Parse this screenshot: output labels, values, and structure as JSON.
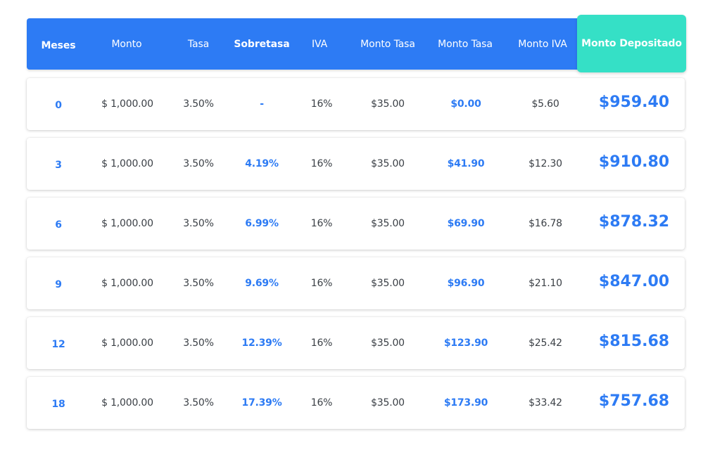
{
  "header": {
    "meses": "Meses",
    "monto": "Monto",
    "tasa": "Tasa",
    "sobretasa": "Sobretasa",
    "iva": "IVA",
    "monto_tasa_1": "Monto Tasa",
    "monto_tasa_2": "Monto Tasa",
    "monto_iva": "Monto IVA",
    "monto_depositado": "Monto Depositado"
  },
  "colors": {
    "header_blue": "#2d7bf4",
    "highlight_teal": "#35e0c6",
    "value_blue": "#2d7bf4",
    "text_dark": "#3a3f45"
  },
  "rows": [
    {
      "meses": "0",
      "monto": "$ 1,000.00",
      "tasa": "3.50%",
      "sobretasa": "-",
      "iva": "16%",
      "monto_tasa": "$35.00",
      "monto_sobretasa": "$0.00",
      "monto_iva": "$5.60",
      "monto_depositado": "$959.40"
    },
    {
      "meses": "3",
      "monto": "$ 1,000.00",
      "tasa": "3.50%",
      "sobretasa": "4.19%",
      "iva": "16%",
      "monto_tasa": "$35.00",
      "monto_sobretasa": "$41.90",
      "monto_iva": "$12.30",
      "monto_depositado": "$910.80"
    },
    {
      "meses": "6",
      "monto": "$ 1,000.00",
      "tasa": "3.50%",
      "sobretasa": "6.99%",
      "iva": "16%",
      "monto_tasa": "$35.00",
      "monto_sobretasa": "$69.90",
      "monto_iva": "$16.78",
      "monto_depositado": "$878.32"
    },
    {
      "meses": "9",
      "monto": "$ 1,000.00",
      "tasa": "3.50%",
      "sobretasa": "9.69%",
      "iva": "16%",
      "monto_tasa": "$35.00",
      "monto_sobretasa": "$96.90",
      "monto_iva": "$21.10",
      "monto_depositado": "$847.00"
    },
    {
      "meses": "12",
      "monto": "$ 1,000.00",
      "tasa": "3.50%",
      "sobretasa": "12.39%",
      "iva": "16%",
      "monto_tasa": "$35.00",
      "monto_sobretasa": "$123.90",
      "monto_iva": "$25.42",
      "monto_depositado": "$815.68"
    },
    {
      "meses": "18",
      "monto": "$ 1,000.00",
      "tasa": "3.50%",
      "sobretasa": "17.39%",
      "iva": "16%",
      "monto_tasa": "$35.00",
      "monto_sobretasa": "$173.90",
      "monto_iva": "$33.42",
      "monto_depositado": "$757.68"
    }
  ]
}
